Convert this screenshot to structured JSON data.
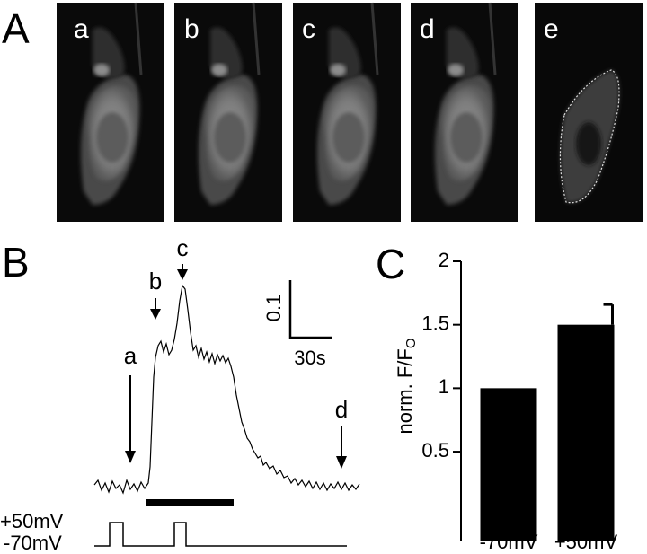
{
  "panel_a": {
    "letter": "A",
    "labels": [
      "a",
      "b",
      "c",
      "d",
      "e"
    ]
  },
  "panel_b": {
    "letter": "B",
    "markers": [
      "a",
      "b",
      "c",
      "d"
    ],
    "scale_y": "0.1",
    "scale_x": "30s",
    "protocol_high": "+50mV",
    "protocol_low": "-70mV"
  },
  "chart_data": {
    "type": "bar",
    "letter": "C",
    "ylabel": "norm. F/F",
    "ylabel_subscript": "O",
    "categories": [
      "-70mV",
      "+50mV"
    ],
    "values": [
      1.0,
      1.5
    ],
    "errors": [
      null,
      0.16
    ],
    "color": "#000000",
    "ylim": [
      -0.2,
      2.0
    ],
    "yticks": [
      0.5,
      1,
      1.5,
      2
    ]
  }
}
